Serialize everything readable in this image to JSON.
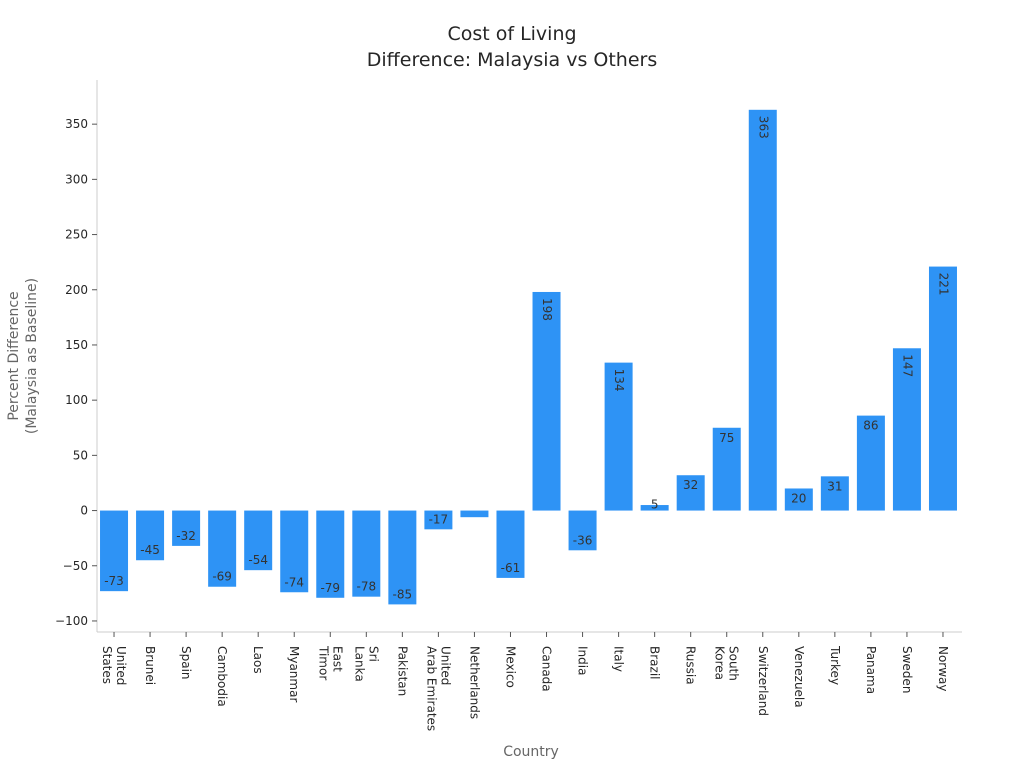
{
  "colors": {
    "bar": "#2e93f5",
    "axis": "#cccccc",
    "text": "#262626",
    "label": "#666666"
  },
  "chart_data": {
    "type": "bar",
    "title": [
      "Cost of Living",
      "Difference: Malaysia vs Others"
    ],
    "xlabel": "Country",
    "ylabel": [
      "Percent Difference",
      "(Malaysia as Baseline)"
    ],
    "ylim": [
      -110,
      390
    ],
    "yticks": [
      -100,
      -50,
      0,
      50,
      100,
      150,
      200,
      250,
      300,
      350
    ],
    "categories": [
      [
        "United",
        "States"
      ],
      [
        "Brunei"
      ],
      [
        "Spain"
      ],
      [
        "Cambodia"
      ],
      [
        "Laos"
      ],
      [
        "Myanmar"
      ],
      [
        "East",
        "Timor"
      ],
      [
        "Sri",
        "Lanka"
      ],
      [
        "Pakistan"
      ],
      [
        "United",
        "Arab Emirates"
      ],
      [
        "Netherlands"
      ],
      [
        "Mexico"
      ],
      [
        "Canada"
      ],
      [
        "India"
      ],
      [
        "Italy"
      ],
      [
        "Brazil"
      ],
      [
        "Russia"
      ],
      [
        "South",
        "Korea"
      ],
      [
        "Switzerland"
      ],
      [
        "Venezuela"
      ],
      [
        "Turkey"
      ],
      [
        "Panama"
      ],
      [
        "Sweden"
      ],
      [
        "Norway"
      ]
    ],
    "values": [
      -73,
      -45,
      -32,
      -69,
      -54,
      -74,
      -79,
      -78,
      -85,
      -17,
      -6,
      -61,
      198,
      -36,
      134,
      5,
      32,
      75,
      363,
      20,
      31,
      86,
      147,
      221
    ],
    "labels": [
      "-73",
      "-45",
      "-32",
      "-69",
      "-54",
      "-74",
      "-79",
      "-78",
      "-85",
      "-17",
      "",
      "-61",
      "198",
      "-36",
      "134",
      "5",
      "32",
      "75",
      "363",
      "20",
      "31",
      "86",
      "147",
      "221"
    ]
  }
}
